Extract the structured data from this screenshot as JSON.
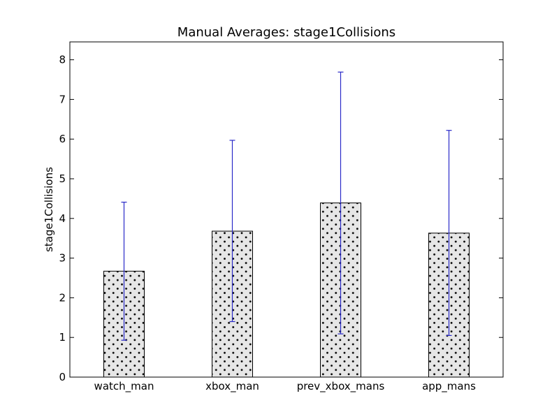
{
  "chart_data": {
    "type": "bar",
    "title": "Manual Averages: stage1Collisions",
    "xlabel": "",
    "ylabel": "stage1Collisions",
    "categories": [
      "watch_man",
      "xbox_man",
      "prev_xbox_mans",
      "app_mans"
    ],
    "values": [
      2.67,
      3.68,
      4.39,
      3.63
    ],
    "error": [
      {
        "low": 0.93,
        "high": 4.41
      },
      {
        "low": 1.4,
        "high": 5.97
      },
      {
        "low": 1.09,
        "high": 7.69
      },
      {
        "low": 1.05,
        "high": 6.22
      }
    ],
    "ylim": [
      0,
      8.45
    ],
    "yticks": [
      "0",
      "1",
      "2",
      "3",
      "4",
      "5",
      "6",
      "7",
      "8"
    ],
    "grid": false,
    "legend": "none",
    "bar_fill": "#e6e6e6",
    "bar_pattern": "dots",
    "bar_edge": "#000000",
    "error_color": "#2a2ac8"
  }
}
